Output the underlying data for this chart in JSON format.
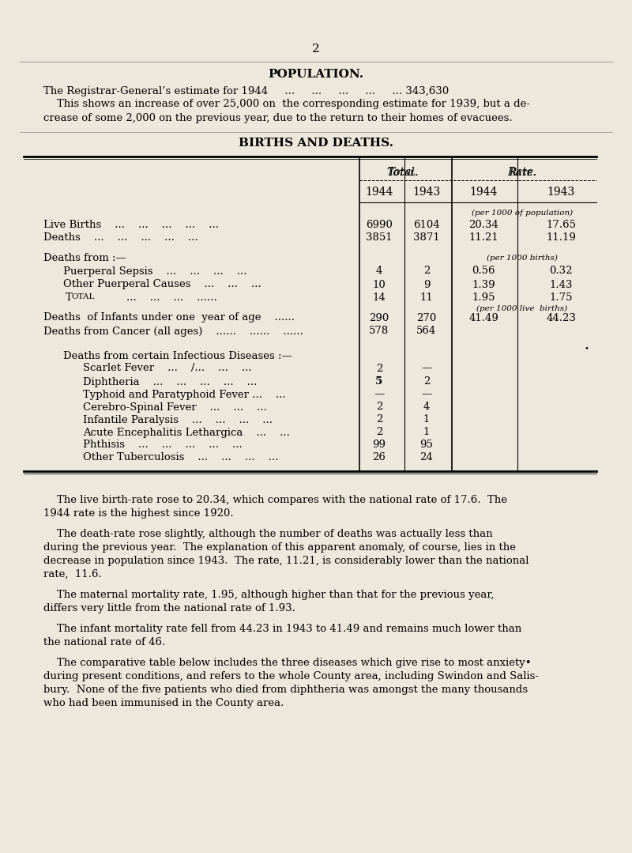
{
  "bg_color": "#ede8dc",
  "page_num": "2",
  "section_title": "POPULATION.",
  "pop_line1": "The Registrar-General’s estimate for 1944     ...     ...     ...     ...     ... 343,630",
  "pop_line2": "    This shows an increase of over 25,000 on  the corresponding estimate for 1939, but a de-",
  "pop_line3": "crease of some 2,000 on the previous year, due to the return to their homes of evacuees.",
  "table_title": "BIRTHS AND DEATHS.",
  "paragraphs": [
    "    The live birth-rate rose to 20.34, which compares with the national rate of 17.6.  The\n1944 rate is the highest since 1920.",
    "    The death-rate rose slightly, although the number of deaths was actually less than\nduring the previous year.  The explanation of this apparent anomaly, of course, lies in the\ndecrease in population since 1943.  The rate, 11.21, is considerably lower than the national\nrate,  11.6.",
    "    The maternal mortality rate, 1.95, although higher than that for the previous year,\ndiffers very little from the national rate of 1.93.",
    "    The infant mortality rate fell from 44.23 in 1943 to 41.49 and remains much lower than\nthe national rate of 46.",
    "    The comparative table below includes the three diseases which give rise to most anxiety•\nduring present conditions, and refers to the whole County area, including Swindon and Salis-\nbury.  None of the five patients who died from diphtheria was amongst the many thousands\nwho had been immunised in the County area."
  ]
}
